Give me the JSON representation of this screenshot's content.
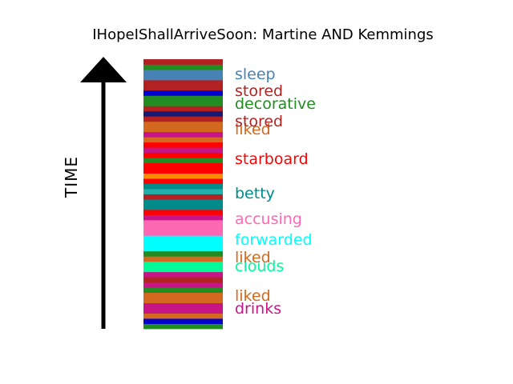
{
  "chart_data": {
    "type": "bar",
    "title": "IHopeIShallArriveSoon: Martine AND Kemmings",
    "ylabel": "TIME",
    "orientation": "stacked-vertical-strip",
    "segments": [
      {
        "color": "#228b22"
      },
      {
        "color": "#0000cd"
      },
      {
        "color": "#d2691e"
      },
      {
        "color": "#c71585"
      },
      {
        "color": "#c71585"
      },
      {
        "color": "#d2691e"
      },
      {
        "color": "#d2691e"
      },
      {
        "color": "#228b22"
      },
      {
        "color": "#c71585"
      },
      {
        "color": "#b22222"
      },
      {
        "color": "#c71585"
      },
      {
        "color": "#00fa9a"
      },
      {
        "color": "#00fa9a"
      },
      {
        "color": "#d2691e"
      },
      {
        "color": "#228b22"
      },
      {
        "color": "#00ffff"
      },
      {
        "color": "#00ffff"
      },
      {
        "color": "#00ffff"
      },
      {
        "color": "#ff69b4"
      },
      {
        "color": "#ff69b4"
      },
      {
        "color": "#ff69b4"
      },
      {
        "color": "#c71585"
      },
      {
        "color": "#ff0000"
      },
      {
        "color": "#008b8b"
      },
      {
        "color": "#008b8b"
      },
      {
        "color": "#b22222"
      },
      {
        "color": "#20b2aa"
      },
      {
        "color": "#008b8b"
      },
      {
        "color": "#ff0000"
      },
      {
        "color": "#ff8c00"
      },
      {
        "color": "#ff0000"
      },
      {
        "color": "#ff0000"
      },
      {
        "color": "#228b22"
      },
      {
        "color": "#ff0000"
      },
      {
        "color": "#c71585"
      },
      {
        "color": "#ff0000"
      },
      {
        "color": "#d2691e"
      },
      {
        "color": "#c71585"
      },
      {
        "color": "#d2691e"
      },
      {
        "color": "#d2691e"
      },
      {
        "color": "#b22222"
      },
      {
        "color": "#191970"
      },
      {
        "color": "#b22222"
      },
      {
        "color": "#228b22"
      },
      {
        "color": "#228b22"
      },
      {
        "color": "#0000cd"
      },
      {
        "color": "#b22222"
      },
      {
        "color": "#b22222"
      },
      {
        "color": "#4682b4"
      },
      {
        "color": "#4682b4"
      },
      {
        "color": "#228b22"
      },
      {
        "color": "#b22222"
      }
    ],
    "labels": [
      {
        "text": "drinks",
        "color": "#c71585"
      },
      {
        "text": "liked",
        "color": "#d2691e"
      },
      {
        "text": "clouds",
        "color": "#00fa9a"
      },
      {
        "text": "liked",
        "color": "#d2691e"
      },
      {
        "text": "forwarded",
        "color": "#00ffff"
      },
      {
        "text": "accusing",
        "color": "#ff69b4"
      },
      {
        "text": "betty",
        "color": "#008b8b"
      },
      {
        "text": "starboard",
        "color": "#ff0000"
      },
      {
        "text": "liked",
        "color": "#d2691e"
      },
      {
        "text": "stored",
        "color": "#b22222"
      },
      {
        "text": "decorative",
        "color": "#228b22"
      },
      {
        "text": "stored",
        "color": "#b22222"
      },
      {
        "text": "sleep",
        "color": "#4682b4"
      }
    ]
  }
}
